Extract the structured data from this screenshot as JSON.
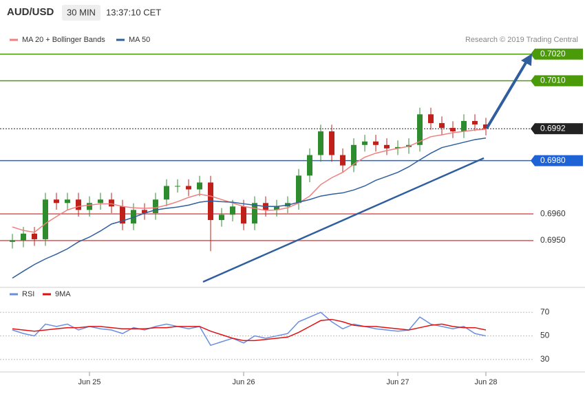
{
  "header": {
    "symbol": "AUD/USD",
    "interval": "30 MIN",
    "time": "13:37:10 CET"
  },
  "chart_data": [
    {
      "type": "candlestick",
      "copyright": "Research © 2019 Trading Central",
      "categories": [
        null,
        null,
        null,
        null,
        null,
        null,
        null,
        "Jun 25",
        null,
        null,
        null,
        null,
        null,
        null,
        null,
        null,
        null,
        null,
        null,
        null,
        null,
        "Jun 26",
        null,
        null,
        null,
        null,
        null,
        null,
        null,
        null,
        null,
        null,
        null,
        null,
        null,
        "Jun 27",
        null,
        null,
        null,
        null,
        null,
        null,
        null,
        "Jun 28"
      ],
      "open": [
        0.69495,
        0.695,
        0.69526,
        0.69505,
        0.69654,
        0.69641,
        0.69654,
        0.69615,
        0.69641,
        0.69654,
        0.69628,
        0.69564,
        0.69615,
        0.69603,
        0.69654,
        0.69705,
        0.69705,
        0.69692,
        0.69718,
        0.69577,
        0.69597,
        0.69628,
        0.69564,
        0.69641,
        0.69615,
        0.69628,
        0.69641,
        0.69744,
        0.69821,
        0.6991,
        0.69821,
        0.69782,
        0.69859,
        0.69872,
        0.69859,
        0.69846,
        0.69851,
        0.69859,
        0.69974,
        0.69941,
        0.69923,
        0.6991,
        0.69949,
        0.69936
      ],
      "high": [
        0.69525,
        0.69551,
        0.69551,
        0.69679,
        0.69679,
        0.69679,
        0.69679,
        0.69666,
        0.69679,
        0.69679,
        0.69653,
        0.6964,
        0.6964,
        0.69679,
        0.6973,
        0.6973,
        0.6973,
        0.69743,
        0.69743,
        0.69622,
        0.69653,
        0.69653,
        0.69666,
        0.69666,
        0.69653,
        0.69666,
        0.69769,
        0.69846,
        0.69935,
        0.69935,
        0.69846,
        0.69884,
        0.69897,
        0.69897,
        0.69884,
        0.69876,
        0.69884,
        0.69999,
        0.69999,
        0.69966,
        0.69948,
        0.69974,
        0.69974,
        0.69961
      ],
      "low": [
        0.6947,
        0.69475,
        0.6948,
        0.6948,
        0.69616,
        0.69616,
        0.6959,
        0.6959,
        0.69616,
        0.69603,
        0.69539,
        0.69539,
        0.69578,
        0.69578,
        0.69629,
        0.6968,
        0.69667,
        0.69667,
        0.6946,
        0.69552,
        0.69572,
        0.69539,
        0.69539,
        0.6959,
        0.6959,
        0.69603,
        0.69616,
        0.69719,
        0.69796,
        0.69796,
        0.69757,
        0.69757,
        0.69834,
        0.69834,
        0.69821,
        0.69821,
        0.69826,
        0.69834,
        0.69916,
        0.69898,
        0.69885,
        0.69885,
        0.69911,
        0.69895
      ],
      "close": [
        0.695,
        0.69526,
        0.69505,
        0.69654,
        0.69641,
        0.69654,
        0.69615,
        0.69641,
        0.69654,
        0.69628,
        0.69564,
        0.69615,
        0.69603,
        0.69654,
        0.69705,
        0.69705,
        0.69692,
        0.69718,
        0.69577,
        0.69597,
        0.69628,
        0.69564,
        0.69641,
        0.69615,
        0.69628,
        0.69641,
        0.69744,
        0.69821,
        0.6991,
        0.69821,
        0.69782,
        0.69859,
        0.69872,
        0.69859,
        0.69846,
        0.69851,
        0.69859,
        0.69974,
        0.69941,
        0.69923,
        0.6991,
        0.69949,
        0.69936,
        0.6992
      ],
      "up_color": "#2e8b2e",
      "down_color": "#c0201a",
      "series": [
        {
          "name": "MA 20 + Bollinger Bands",
          "color": "#f08080",
          "values": [
            0.69551,
            0.69538,
            0.69531,
            0.69564,
            0.6959,
            0.69615,
            0.69628,
            0.69633,
            0.69638,
            0.69638,
            0.69628,
            0.69623,
            0.69621,
            0.69623,
            0.69633,
            0.69646,
            0.69662,
            0.69674,
            0.69667,
            0.69654,
            0.69641,
            0.69628,
            0.69621,
            0.69613,
            0.69615,
            0.69623,
            0.69641,
            0.69667,
            0.6971,
            0.69736,
            0.69756,
            0.69787,
            0.69813,
            0.69828,
            0.69838,
            0.69846,
            0.69854,
            0.69872,
            0.6989,
            0.69897,
            0.69905,
            0.6991,
            0.69915,
            0.69918
          ]
        },
        {
          "name": "MA 50",
          "color": "#2f5e9e",
          "values": [
            0.69359,
            0.69385,
            0.6941,
            0.69431,
            0.69449,
            0.69469,
            0.69495,
            0.69513,
            0.69536,
            0.69562,
            0.69574,
            0.69587,
            0.69603,
            0.69615,
            0.69621,
            0.69626,
            0.69633,
            0.69644,
            0.69649,
            0.69646,
            0.69644,
            0.69638,
            0.69633,
            0.69628,
            0.69628,
            0.69633,
            0.69644,
            0.69654,
            0.69667,
            0.69674,
            0.69679,
            0.6969,
            0.69705,
            0.69726,
            0.69741,
            0.69756,
            0.69777,
            0.69803,
            0.69828,
            0.69849,
            0.69859,
            0.69869,
            0.69879,
            0.69885
          ]
        }
      ],
      "ylim": [
        0.6935,
        0.703
      ],
      "yticks": [
        {
          "value": 0.702,
          "label": "0.7020"
        },
        {
          "value": 0.701,
          "label": "0.7010"
        },
        {
          "value": 0.6992,
          "label": "0.6992"
        },
        {
          "value": 0.698,
          "label": "0.6980"
        },
        {
          "value": 0.696,
          "label": "0.6960"
        },
        {
          "value": 0.695,
          "label": "0.6950"
        }
      ],
      "tick_colors": [
        "#4a9a0a",
        "#4a9a0a",
        "#222222",
        "#1e63d6",
        "#e05050",
        "#e05050"
      ],
      "tick_boxed": [
        true,
        true,
        true,
        true,
        false,
        false
      ],
      "tick_dotted": [
        false,
        false,
        true,
        false,
        false,
        false
      ]
    },
    {
      "type": "line",
      "series": [
        {
          "name": "RSI",
          "color": "#6a8ee0",
          "values": [
            55,
            52,
            50,
            60,
            58,
            60,
            55,
            58,
            56,
            55,
            52,
            57,
            55,
            58,
            60,
            58,
            56,
            58,
            42,
            45,
            48,
            44,
            50,
            48,
            50,
            52,
            62,
            66,
            70,
            62,
            56,
            60,
            58,
            56,
            55,
            54,
            55,
            66,
            60,
            58,
            56,
            58,
            52,
            50
          ]
        },
        {
          "name": "9MA",
          "color": "#e01010",
          "values": [
            56,
            55,
            54,
            55,
            56,
            57,
            57,
            58,
            58,
            57,
            56,
            56,
            56,
            57,
            57,
            58,
            58,
            58,
            54,
            51,
            48,
            46,
            46,
            47,
            48,
            49,
            53,
            58,
            63,
            64,
            62,
            59,
            58,
            58,
            57,
            56,
            55,
            57,
            59,
            60,
            58,
            57,
            57,
            55
          ]
        }
      ],
      "ylim": [
        20,
        90
      ],
      "yticks": [
        30,
        50,
        70
      ]
    }
  ]
}
